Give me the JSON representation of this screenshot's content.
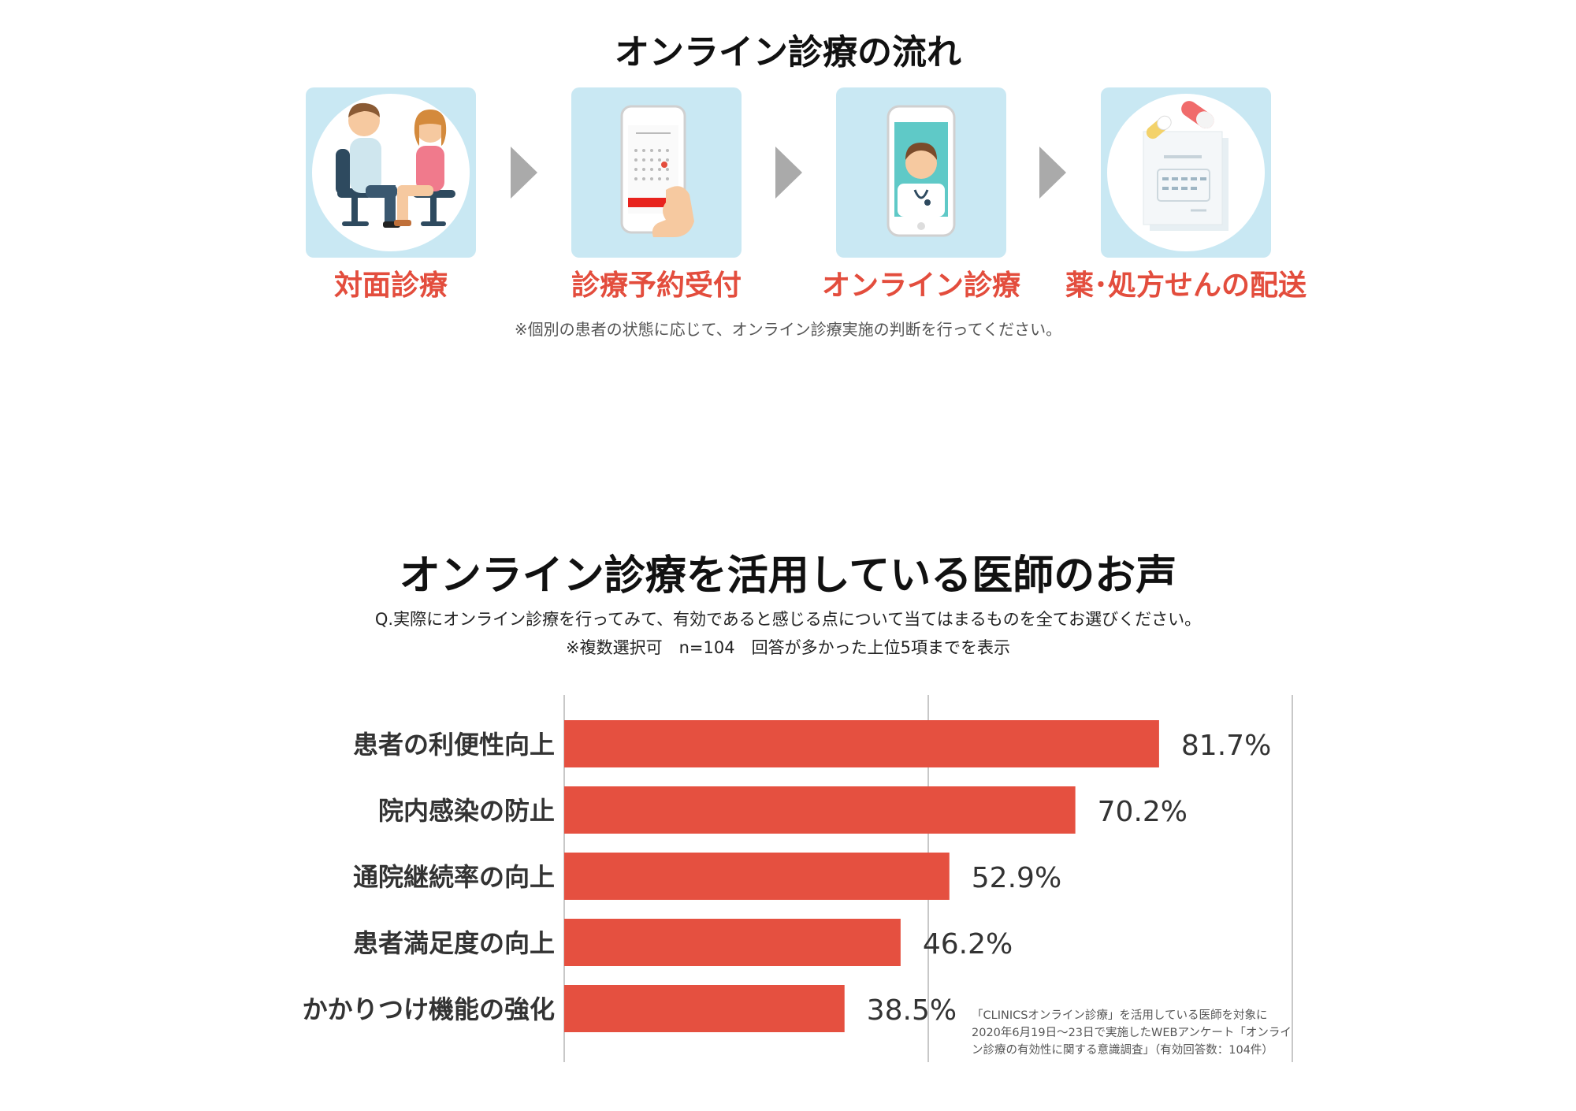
{
  "flow": {
    "title": "オンライン診療の流れ",
    "steps": [
      {
        "label": "対面診療",
        "icon": "doctor-patient-icon"
      },
      {
        "label": "診療予約受付",
        "icon": "phone-calendar-icon"
      },
      {
        "label": "オンライン診療",
        "icon": "phone-video-doctor-icon"
      },
      {
        "label": "薬･処方せんの配送",
        "icon": "pills-prescription-icon"
      }
    ],
    "arrow_icon": "chevron-right-arrow",
    "note": "※個別の患者の状態に応じて、オンライン診療実施の判断を行ってください。"
  },
  "voices": {
    "title": "オンライン診療を活用している医師のお声",
    "question": "Q.実際にオンライン診療を行ってみて、有効であると感じる点について当てはまるものを全てお選びください。",
    "note": "※複数選択可　n=104　回答が多かった上位5項までを表示",
    "source": "「CLINICSオンライン診療」を活用している医師を対象に2020年6月19日〜23日で実施したWEBアンケート「オンライン診療の有効性に関する意識調査」（有効回答数：104件）"
  },
  "colors": {
    "bar": "#e55040",
    "step_label": "#e34d3d",
    "card_bg": "#c9e8f3",
    "arrow": "#aaaaaa",
    "grid": "#c8c8c8"
  },
  "chart_data": {
    "type": "bar",
    "orientation": "horizontal",
    "categories": [
      "患者の利便性向上",
      "院内感染の防止",
      "通院継続率の向上",
      "患者満足度の向上",
      "かかりつけ機能の強化"
    ],
    "values": [
      81.7,
      70.2,
      52.9,
      46.2,
      38.5
    ],
    "value_labels": [
      "81.7%",
      "70.2%",
      "52.9%",
      "46.2%",
      "38.5%"
    ],
    "xlim": [
      0,
      100
    ],
    "gridlines": [
      0,
      50,
      100
    ],
    "legend": false
  }
}
